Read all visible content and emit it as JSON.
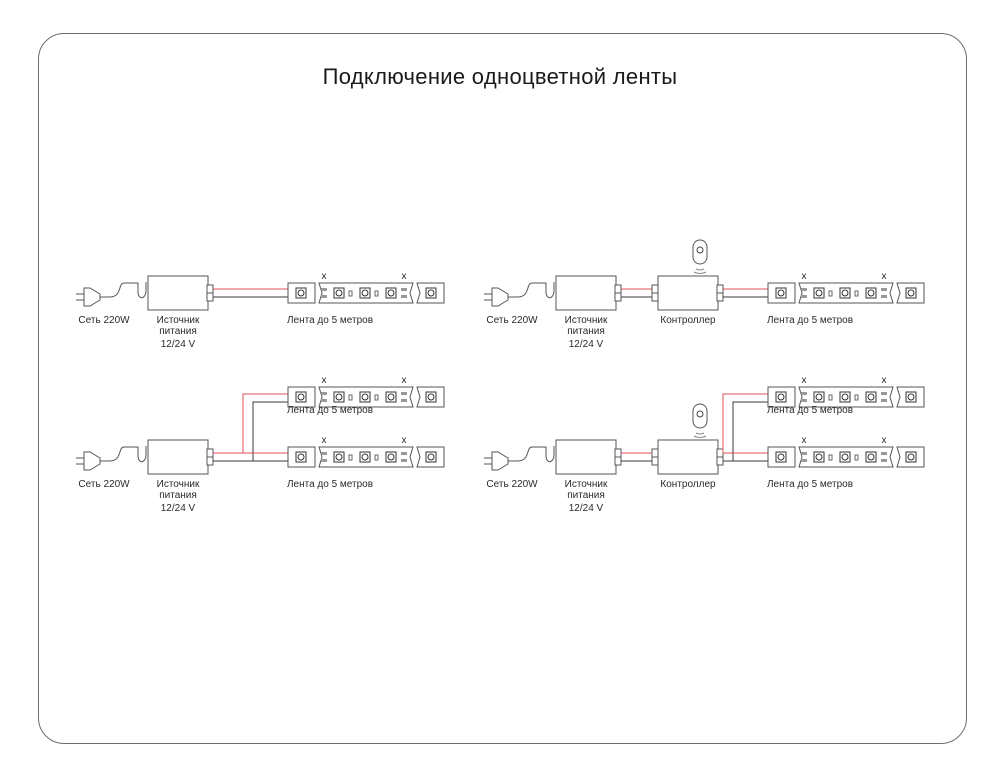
{
  "title": "Подключение одноцветной ленты",
  "labels": {
    "mains": "Сеть 220W",
    "psu_line1": "Источник",
    "psu_line2": "питания",
    "psu_voltage": "12/24 V",
    "controller": "Контроллер",
    "strip": "Лента до 5 метров",
    "cut_mark": "x"
  },
  "diagrams": [
    {
      "controller": false,
      "strips": 1
    },
    {
      "controller": true,
      "strips": 1
    },
    {
      "controller": false,
      "strips": 2
    },
    {
      "controller": true,
      "strips": 2
    }
  ],
  "colors": {
    "positive_wire": "#e0505a",
    "negative_wire": "#3a3a3a",
    "outline": "#555555"
  }
}
